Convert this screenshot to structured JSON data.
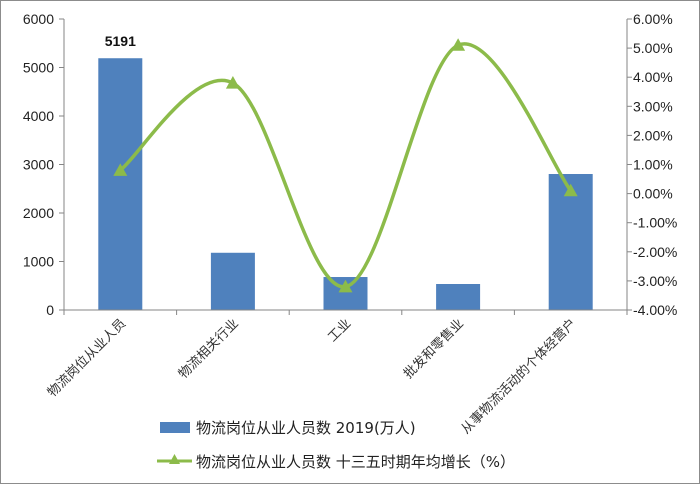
{
  "chart_data": {
    "type": "bar+line",
    "categories": [
      "物流岗位从业人员",
      "物流相关行业",
      "工业",
      "批发和零售业",
      "从事物流活动的个体经营户"
    ],
    "series": [
      {
        "name": "物流岗位从业人员数 2019(万人)",
        "type": "bar",
        "axis": "left",
        "color": "#4f81bd",
        "values": [
          5191,
          1180,
          680,
          536,
          2804
        ],
        "data_labels": [
          "5191",
          null,
          null,
          null,
          null
        ]
      },
      {
        "name": "物流岗位从业人员数 十三五时期年均增长（%）",
        "type": "line",
        "axis": "right",
        "color": "#8cbb4a",
        "marker": "triangle",
        "smooth": true,
        "values": [
          0.8,
          3.8,
          -3.2,
          5.1,
          0.1
        ]
      }
    ],
    "left_axis": {
      "ylim": [
        0,
        6000
      ],
      "ticks": [
        "0",
        "1000",
        "2000",
        "3000",
        "4000",
        "5000",
        "6000"
      ]
    },
    "right_axis": {
      "ylim": [
        -4,
        6
      ],
      "ticks": [
        "-4.00%",
        "-3.00%",
        "-2.00%",
        "-1.00%",
        "0.00%",
        "1.00%",
        "2.00%",
        "3.00%",
        "4.00%",
        "5.00%",
        "6.00%"
      ]
    },
    "title": "",
    "xlabel": "",
    "ylabel": "",
    "grid": false,
    "legend_position": "bottom"
  },
  "legend": {
    "bar_label": "物流岗位从业人员数 2019(万人)",
    "line_label": "物流岗位从业人员数 十三五时期年均增长（%）"
  }
}
